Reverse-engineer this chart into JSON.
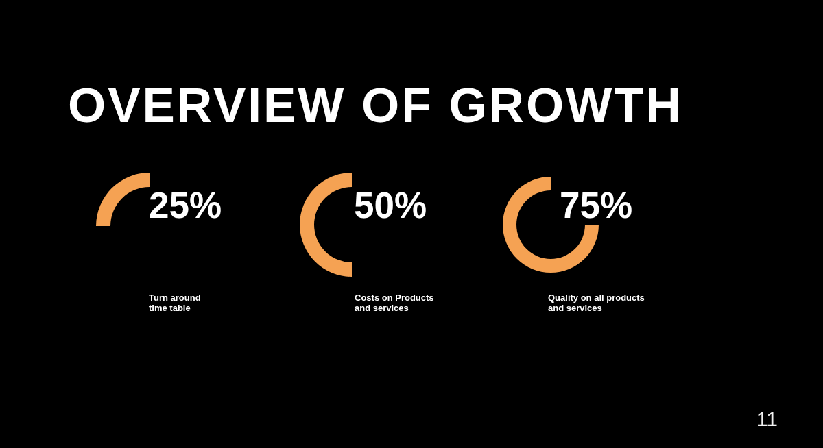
{
  "chart_data": [
    {
      "type": "other",
      "title": "OVERVIEW OF GROWTH",
      "annotations": [
        "11"
      ]
    },
    {
      "type": "other",
      "title": "Turn around time table",
      "values": [
        25
      ],
      "value_labels": [
        "25%"
      ],
      "color": "#f5a253"
    },
    {
      "type": "other",
      "title": "Costs on Products and services",
      "values": [
        50
      ],
      "value_labels": [
        "50%"
      ],
      "color": "#f5a253"
    },
    {
      "type": "other",
      "title": "Quality on all products and services",
      "values": [
        75
      ],
      "value_labels": [
        "75%"
      ],
      "color": "#f5a253"
    }
  ]
}
